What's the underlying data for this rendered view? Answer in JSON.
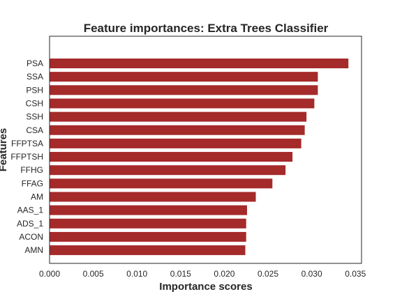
{
  "chart_data": {
    "type": "bar",
    "orientation": "horizontal",
    "title": "Feature importances: Extra Trees Classifier",
    "xlabel": "Importance scores",
    "ylabel": "Features",
    "categories": [
      "PSA",
      "SSA",
      "PSH",
      "CSH",
      "SSH",
      "CSA",
      "FFPTSA",
      "FFPTSH",
      "FFHG",
      "FFAG",
      "AM",
      "AAS_1",
      "ADS_1",
      "ACON",
      "AMN"
    ],
    "values": [
      0.0342,
      0.0307,
      0.0307,
      0.0303,
      0.0294,
      0.0292,
      0.0288,
      0.0278,
      0.027,
      0.0255,
      0.0236,
      0.0226,
      0.0225,
      0.0225,
      0.0224
    ],
    "xlim": [
      0.0,
      0.0357
    ],
    "xticks": [
      0.0,
      0.005,
      0.01,
      0.015,
      0.02,
      0.025,
      0.03,
      0.035
    ],
    "xtick_labels": [
      "0.000",
      "0.005",
      "0.010",
      "0.015",
      "0.020",
      "0.025",
      "0.030",
      "0.035"
    ],
    "grid": false,
    "bar_color": "#a52a2a",
    "axis_color": "#262626"
  }
}
